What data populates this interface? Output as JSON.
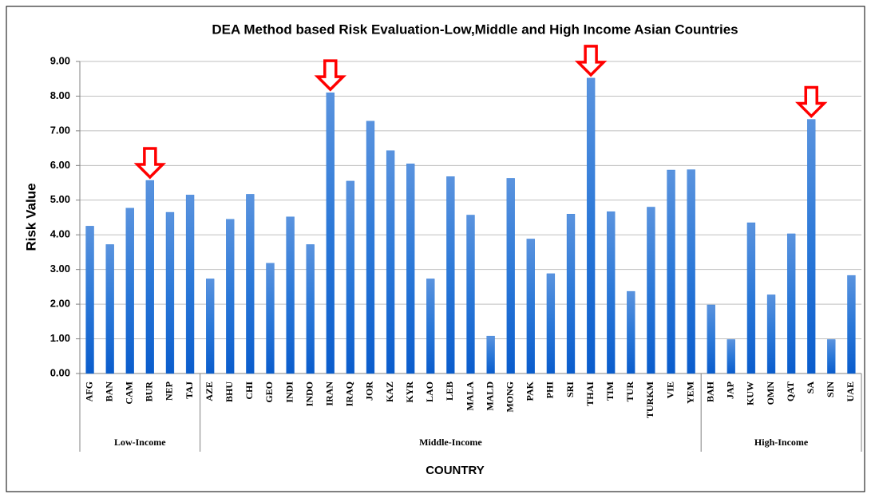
{
  "chart_data": {
    "type": "bar",
    "title": "DEA Method based Risk Evaluation-Low,Middle  and High Income Asian Countries",
    "x_label": "COUNTRY",
    "y_label": "Risk Value",
    "categories": [
      "AFG",
      "BAN",
      "CAM",
      "BUR",
      "NEP",
      "TAJ",
      "AZE",
      "BHU",
      "CHI",
      "GEO",
      "INDI",
      "INDO",
      "IRAN",
      "IRAQ",
      "JOR",
      "KAZ",
      "KYR",
      "LAO",
      "LEB",
      "MALA",
      "MALD",
      "MONG",
      "PAK",
      "PHI",
      "SRI",
      "THAI",
      "TIM",
      "TUR",
      "TURKM",
      "VIE",
      "YEM",
      "BAH",
      "JAP",
      "KUW",
      "OMN",
      "QAT",
      "SA",
      "SIN",
      "UAE"
    ],
    "values": [
      4.25,
      3.72,
      4.77,
      5.57,
      4.65,
      5.15,
      2.73,
      4.45,
      5.17,
      3.18,
      4.52,
      3.72,
      8.1,
      5.55,
      7.28,
      6.43,
      6.05,
      2.73,
      5.68,
      4.57,
      1.08,
      5.63,
      3.88,
      2.88,
      4.6,
      8.52,
      4.67,
      2.37,
      4.8,
      5.87,
      5.88,
      1.98,
      0.98,
      4.35,
      2.27,
      4.03,
      7.33,
      0.98,
      2.83
    ],
    "groups": [
      {
        "name": "Low-Income",
        "count": 6
      },
      {
        "name": "Middle-Income",
        "count": 25
      },
      {
        "name": "High-Income",
        "count": 8
      }
    ],
    "markers": [
      3,
      12,
      25,
      36
    ],
    "marker_color": "#ff0000",
    "color": "#1a6fd6",
    "ylim": [
      0,
      9
    ],
    "yticks": [
      {
        "value": 0,
        "label": "0.00"
      },
      {
        "value": 1,
        "label": "1.00"
      },
      {
        "value": 2,
        "label": "2.00"
      },
      {
        "value": 3,
        "label": "3.00"
      },
      {
        "value": 4,
        "label": "4.00"
      },
      {
        "value": 5,
        "label": "5.00"
      },
      {
        "value": 6,
        "label": "6.00"
      },
      {
        "value": 7,
        "label": "7.00"
      },
      {
        "value": 8,
        "label": "8.00"
      },
      {
        "value": 9,
        "label": "9.00"
      }
    ],
    "grid": true
  }
}
